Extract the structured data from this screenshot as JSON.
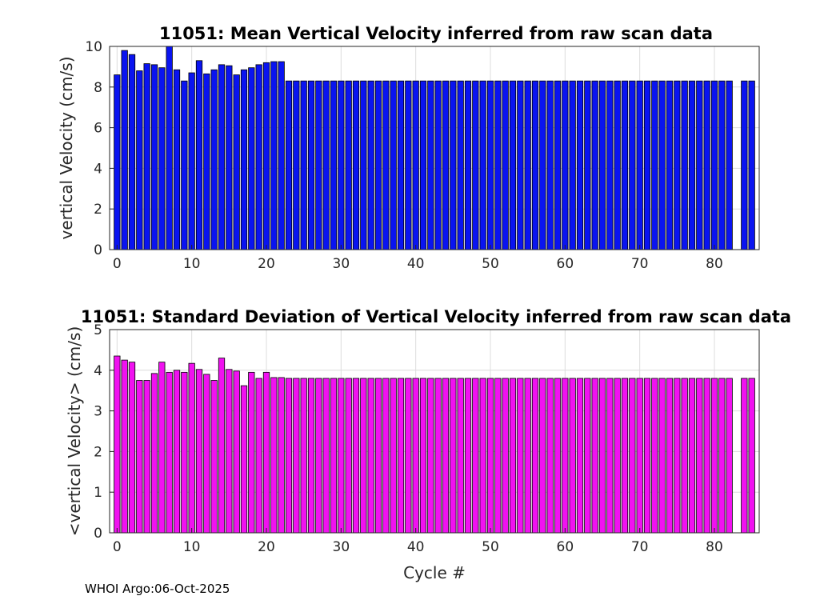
{
  "chart_data": [
    {
      "type": "bar",
      "title": "11051: Mean Vertical Velocity inferred from raw scan data",
      "xlabel": "",
      "ylabel": "vertical Velocity (cm/s)",
      "color": "#0a14f0",
      "xlim": [
        -1,
        86
      ],
      "ylim": [
        0,
        10
      ],
      "xticks": [
        0,
        10,
        20,
        30,
        40,
        50,
        60,
        70,
        80
      ],
      "yticks": [
        0,
        2,
        4,
        6,
        8,
        10
      ],
      "grid": true,
      "x": [
        0,
        1,
        2,
        3,
        4,
        5,
        6,
        7,
        8,
        9,
        10,
        11,
        12,
        13,
        14,
        15,
        16,
        17,
        18,
        19,
        20,
        21,
        22,
        23,
        24,
        25,
        26,
        27,
        28,
        29,
        30,
        31,
        32,
        33,
        34,
        35,
        36,
        37,
        38,
        39,
        40,
        41,
        42,
        43,
        44,
        45,
        46,
        47,
        48,
        49,
        50,
        51,
        52,
        53,
        54,
        55,
        56,
        57,
        58,
        59,
        60,
        61,
        62,
        63,
        64,
        65,
        66,
        67,
        68,
        69,
        70,
        71,
        72,
        73,
        74,
        75,
        76,
        77,
        78,
        79,
        80,
        81,
        82,
        84,
        85
      ],
      "values": [
        8.6,
        9.8,
        9.6,
        8.8,
        9.15,
        9.1,
        8.95,
        10.2,
        8.85,
        8.3,
        8.7,
        9.3,
        8.65,
        8.85,
        9.1,
        9.05,
        8.6,
        8.85,
        8.95,
        9.1,
        9.2,
        9.25,
        9.25,
        8.3,
        8.3,
        8.3,
        8.3,
        8.3,
        8.3,
        8.3,
        8.3,
        8.3,
        8.3,
        8.3,
        8.3,
        8.3,
        8.3,
        8.3,
        8.3,
        8.3,
        8.3,
        8.3,
        8.3,
        8.3,
        8.3,
        8.3,
        8.3,
        8.3,
        8.3,
        8.3,
        8.3,
        8.3,
        8.3,
        8.3,
        8.3,
        8.3,
        8.3,
        8.3,
        8.3,
        8.3,
        8.3,
        8.3,
        8.3,
        8.3,
        8.3,
        8.3,
        8.3,
        8.3,
        8.3,
        8.3,
        8.3,
        8.3,
        8.3,
        8.3,
        8.3,
        8.3,
        8.3,
        8.3,
        8.3,
        8.3,
        8.3,
        8.3,
        8.3,
        8.3,
        8.3
      ]
    },
    {
      "type": "bar",
      "title": "11051: Standard Deviation of Vertical Velocity inferred from raw scan data",
      "xlabel": "Cycle #",
      "ylabel": "<vertical Velocity> (cm/s)",
      "color": "#f012f0",
      "xlim": [
        -1,
        86
      ],
      "ylim": [
        0,
        5
      ],
      "xticks": [
        0,
        10,
        20,
        30,
        40,
        50,
        60,
        70,
        80
      ],
      "yticks": [
        0,
        1,
        2,
        3,
        4,
        5
      ],
      "grid": true,
      "x": [
        0,
        1,
        2,
        3,
        4,
        5,
        6,
        7,
        8,
        9,
        10,
        11,
        12,
        13,
        14,
        15,
        16,
        17,
        18,
        19,
        20,
        21,
        22,
        23,
        24,
        25,
        26,
        27,
        28,
        29,
        30,
        31,
        32,
        33,
        34,
        35,
        36,
        37,
        38,
        39,
        40,
        41,
        42,
        43,
        44,
        45,
        46,
        47,
        48,
        49,
        50,
        51,
        52,
        53,
        54,
        55,
        56,
        57,
        58,
        59,
        60,
        61,
        62,
        63,
        64,
        65,
        66,
        67,
        68,
        69,
        70,
        71,
        72,
        73,
        74,
        75,
        76,
        77,
        78,
        79,
        80,
        81,
        82,
        84,
        85
      ],
      "values": [
        4.35,
        4.25,
        4.2,
        3.75,
        3.75,
        3.92,
        4.2,
        3.95,
        4.0,
        3.95,
        4.17,
        4.02,
        3.9,
        3.75,
        4.3,
        4.02,
        3.98,
        3.62,
        3.95,
        3.8,
        3.95,
        3.82,
        3.82,
        3.8,
        3.8,
        3.8,
        3.8,
        3.8,
        3.8,
        3.8,
        3.8,
        3.8,
        3.8,
        3.8,
        3.8,
        3.8,
        3.8,
        3.8,
        3.8,
        3.8,
        3.8,
        3.8,
        3.8,
        3.8,
        3.8,
        3.8,
        3.8,
        3.8,
        3.8,
        3.8,
        3.8,
        3.8,
        3.8,
        3.8,
        3.8,
        3.8,
        3.8,
        3.8,
        3.8,
        3.8,
        3.8,
        3.8,
        3.8,
        3.8,
        3.8,
        3.8,
        3.8,
        3.8,
        3.8,
        3.8,
        3.8,
        3.8,
        3.8,
        3.8,
        3.8,
        3.8,
        3.8,
        3.8,
        3.8,
        3.8,
        3.8,
        3.8,
        3.8,
        3.8,
        3.8
      ]
    }
  ],
  "footer": "WHOI Argo:06-Oct-2025"
}
